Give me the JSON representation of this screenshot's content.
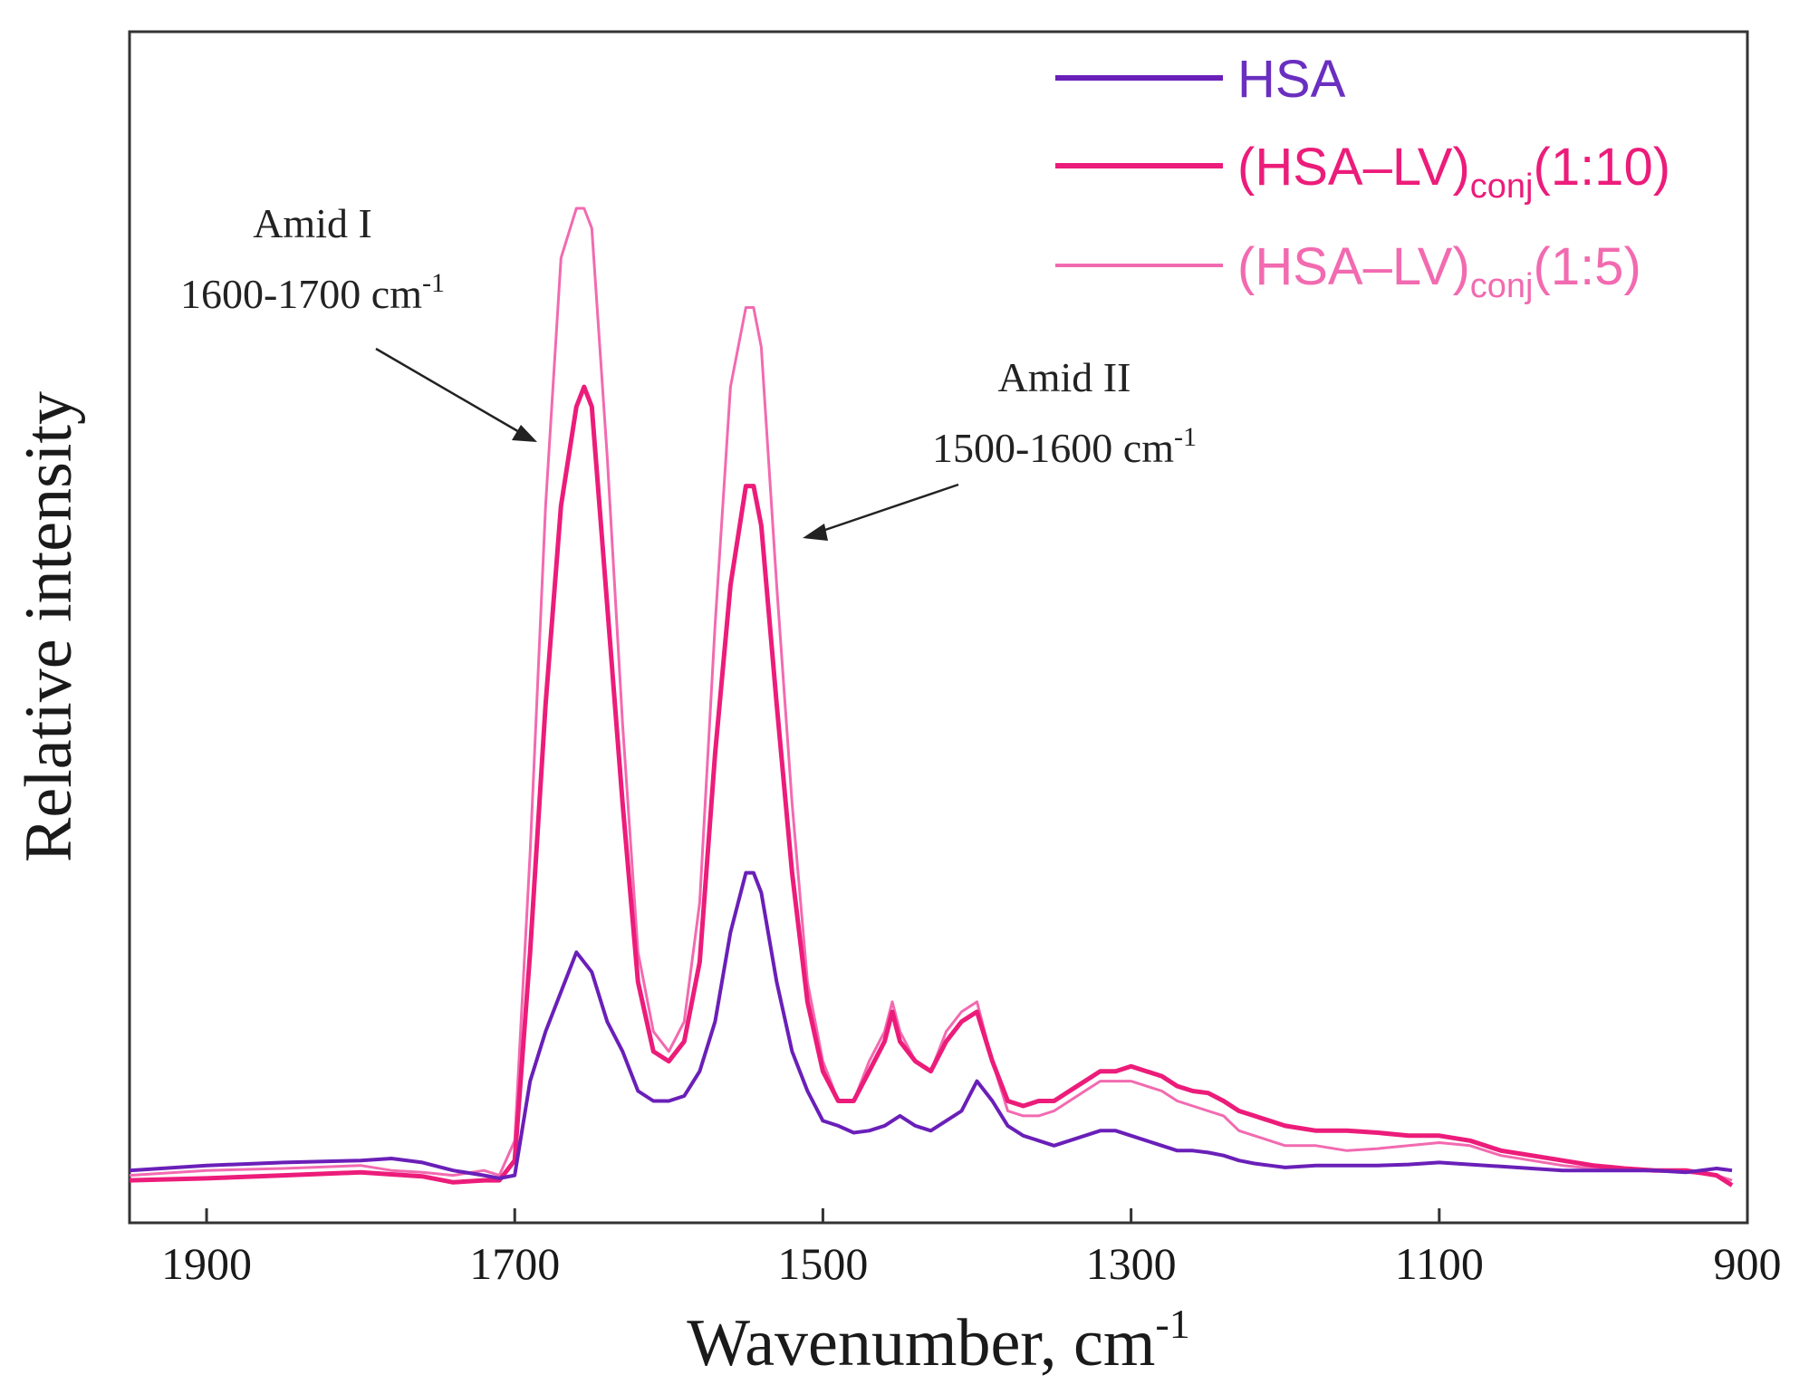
{
  "chart_data": {
    "type": "line",
    "title": "",
    "xlabel": "Wavenumber, cm",
    "xlabel_sup": "-1",
    "ylabel": "Relative intensity",
    "xlim": [
      1950,
      900
    ],
    "ylim": [
      0,
      1.0
    ],
    "x_ticks": [
      1900,
      1700,
      1500,
      1300,
      1100,
      900
    ],
    "grid": false,
    "legend_position": "top-right",
    "series": [
      {
        "name": "HSA",
        "legend_main": "HSA",
        "legend_sub": "",
        "legend_tail": "",
        "color": "#6a1fb8",
        "x": [
          1950,
          1900,
          1850,
          1800,
          1780,
          1760,
          1740,
          1720,
          1710,
          1700,
          1690,
          1680,
          1670,
          1660,
          1655,
          1650,
          1640,
          1630,
          1620,
          1610,
          1600,
          1590,
          1580,
          1570,
          1560,
          1550,
          1545,
          1540,
          1530,
          1520,
          1510,
          1500,
          1490,
          1480,
          1470,
          1460,
          1450,
          1440,
          1430,
          1420,
          1410,
          1400,
          1390,
          1380,
          1370,
          1360,
          1350,
          1340,
          1330,
          1320,
          1310,
          1300,
          1290,
          1280,
          1270,
          1260,
          1250,
          1240,
          1230,
          1220,
          1210,
          1200,
          1180,
          1160,
          1140,
          1120,
          1100,
          1080,
          1060,
          1040,
          1020,
          1000,
          980,
          960,
          940,
          920,
          910
        ],
        "y": [
          0.03,
          0.035,
          0.038,
          0.04,
          0.042,
          0.038,
          0.03,
          0.025,
          0.022,
          0.025,
          0.12,
          0.17,
          0.21,
          0.25,
          0.24,
          0.23,
          0.18,
          0.15,
          0.11,
          0.1,
          0.1,
          0.105,
          0.13,
          0.18,
          0.27,
          0.33,
          0.33,
          0.31,
          0.22,
          0.15,
          0.11,
          0.08,
          0.075,
          0.068,
          0.07,
          0.075,
          0.085,
          0.075,
          0.07,
          0.08,
          0.09,
          0.12,
          0.1,
          0.075,
          0.065,
          0.06,
          0.055,
          0.06,
          0.065,
          0.07,
          0.07,
          0.065,
          0.06,
          0.055,
          0.05,
          0.05,
          0.048,
          0.045,
          0.04,
          0.037,
          0.035,
          0.033,
          0.035,
          0.035,
          0.035,
          0.036,
          0.038,
          0.036,
          0.034,
          0.032,
          0.03,
          0.03,
          0.03,
          0.03,
          0.028,
          0.032,
          0.03
        ]
      },
      {
        "name": "(HSA–LV)conj(1:10)",
        "legend_main": "(HSA–LV)",
        "legend_sub": "conj",
        "legend_tail": "(1:10)",
        "color": "#ec1c7a",
        "x": [
          1950,
          1900,
          1850,
          1800,
          1780,
          1760,
          1740,
          1720,
          1710,
          1700,
          1690,
          1680,
          1670,
          1660,
          1655,
          1650,
          1640,
          1630,
          1620,
          1610,
          1600,
          1590,
          1580,
          1570,
          1560,
          1550,
          1545,
          1540,
          1530,
          1520,
          1510,
          1500,
          1490,
          1480,
          1470,
          1460,
          1455,
          1450,
          1440,
          1430,
          1420,
          1410,
          1400,
          1390,
          1380,
          1370,
          1360,
          1350,
          1340,
          1330,
          1320,
          1310,
          1300,
          1290,
          1280,
          1270,
          1260,
          1250,
          1240,
          1230,
          1220,
          1210,
          1200,
          1180,
          1160,
          1140,
          1120,
          1100,
          1080,
          1060,
          1040,
          1020,
          1000,
          980,
          960,
          940,
          920,
          910
        ],
        "y": [
          0.02,
          0.022,
          0.025,
          0.028,
          0.026,
          0.024,
          0.018,
          0.02,
          0.02,
          0.04,
          0.25,
          0.5,
          0.7,
          0.8,
          0.82,
          0.8,
          0.6,
          0.4,
          0.22,
          0.15,
          0.14,
          0.16,
          0.24,
          0.45,
          0.62,
          0.72,
          0.72,
          0.68,
          0.5,
          0.33,
          0.2,
          0.13,
          0.1,
          0.1,
          0.13,
          0.16,
          0.19,
          0.16,
          0.14,
          0.13,
          0.16,
          0.18,
          0.19,
          0.14,
          0.1,
          0.095,
          0.1,
          0.1,
          0.11,
          0.12,
          0.13,
          0.13,
          0.135,
          0.13,
          0.125,
          0.115,
          0.11,
          0.108,
          0.1,
          0.09,
          0.085,
          0.08,
          0.075,
          0.07,
          0.07,
          0.068,
          0.065,
          0.065,
          0.06,
          0.05,
          0.045,
          0.04,
          0.035,
          0.032,
          0.03,
          0.03,
          0.025,
          0.015
        ]
      },
      {
        "name": "(HSA–LV)conj(1:5)",
        "legend_main": "(HSA–LV)",
        "legend_sub": "conj",
        "legend_tail": "(1:5)",
        "color": "#f26ab0",
        "x": [
          1950,
          1900,
          1850,
          1800,
          1780,
          1760,
          1740,
          1720,
          1710,
          1700,
          1690,
          1680,
          1670,
          1660,
          1655,
          1650,
          1640,
          1630,
          1620,
          1610,
          1600,
          1590,
          1580,
          1570,
          1560,
          1550,
          1545,
          1540,
          1530,
          1520,
          1510,
          1500,
          1490,
          1480,
          1470,
          1460,
          1455,
          1450,
          1440,
          1430,
          1420,
          1410,
          1400,
          1390,
          1380,
          1370,
          1360,
          1350,
          1340,
          1330,
          1320,
          1310,
          1300,
          1290,
          1280,
          1270,
          1260,
          1250,
          1240,
          1230,
          1220,
          1210,
          1200,
          1180,
          1160,
          1140,
          1120,
          1100,
          1080,
          1060,
          1040,
          1020,
          1000,
          980,
          960,
          940,
          920,
          910
        ],
        "y": [
          0.025,
          0.03,
          0.032,
          0.035,
          0.03,
          0.028,
          0.025,
          0.03,
          0.025,
          0.06,
          0.35,
          0.7,
          0.95,
          1.0,
          1.0,
          0.98,
          0.75,
          0.48,
          0.25,
          0.17,
          0.15,
          0.18,
          0.3,
          0.58,
          0.82,
          0.9,
          0.9,
          0.86,
          0.62,
          0.4,
          0.22,
          0.14,
          0.1,
          0.1,
          0.14,
          0.17,
          0.2,
          0.17,
          0.14,
          0.13,
          0.17,
          0.19,
          0.2,
          0.14,
          0.09,
          0.085,
          0.085,
          0.09,
          0.1,
          0.11,
          0.12,
          0.12,
          0.12,
          0.115,
          0.11,
          0.1,
          0.095,
          0.09,
          0.085,
          0.07,
          0.065,
          0.06,
          0.055,
          0.055,
          0.05,
          0.052,
          0.055,
          0.058,
          0.055,
          0.045,
          0.04,
          0.035,
          0.032,
          0.03,
          0.03,
          0.028,
          0.025,
          0.02
        ]
      }
    ],
    "annotations": [
      {
        "name": "amid-1",
        "line1": "Amid I",
        "line2": "1600-1700 cm",
        "sup": "-1",
        "arrow_to": [
          1695,
          0.8
        ]
      },
      {
        "name": "amid-2",
        "line1": "Amid II",
        "line2": "1500-1600 cm",
        "sup": "-1",
        "arrow_to": [
          1525,
          0.7
        ]
      }
    ]
  }
}
